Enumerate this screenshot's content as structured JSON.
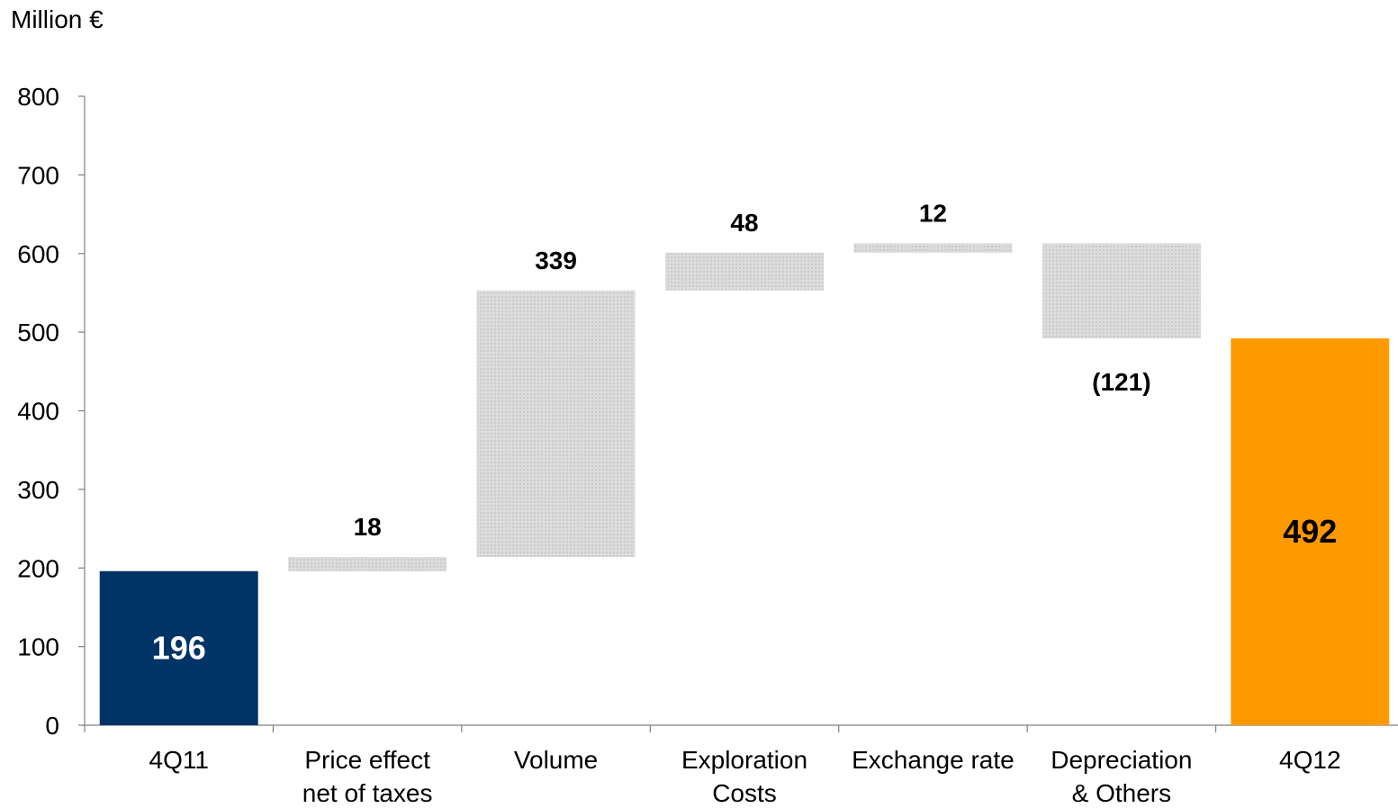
{
  "chart_data": {
    "type": "waterfall",
    "ylabel": "Million €",
    "ylim": [
      0,
      800
    ],
    "yticks": [
      0,
      100,
      200,
      300,
      400,
      500,
      600,
      700,
      800
    ],
    "grid": false,
    "categories": [
      [
        "4Q11"
      ],
      [
        "Price effect",
        "net of taxes"
      ],
      [
        "Volume"
      ],
      [
        "Exploration",
        "Costs"
      ],
      [
        "Exchange rate"
      ],
      [
        "Depreciation",
        "& Others"
      ],
      [
        "4Q12"
      ]
    ],
    "bars": [
      {
        "kind": "total",
        "value": 196,
        "label": "196"
      },
      {
        "kind": "delta",
        "value": 18,
        "label": "18"
      },
      {
        "kind": "delta",
        "value": 339,
        "label": "339"
      },
      {
        "kind": "delta",
        "value": 48,
        "label": "48"
      },
      {
        "kind": "delta",
        "value": 12,
        "label": "12"
      },
      {
        "kind": "delta",
        "value": -121,
        "label": "(121)"
      },
      {
        "kind": "total",
        "value": 492,
        "label": "492"
      }
    ],
    "colors": {
      "start_total": "#003366",
      "end_total": "#FF9900",
      "delta_fill": "#d4d4d4",
      "axis": "#808080"
    }
  }
}
